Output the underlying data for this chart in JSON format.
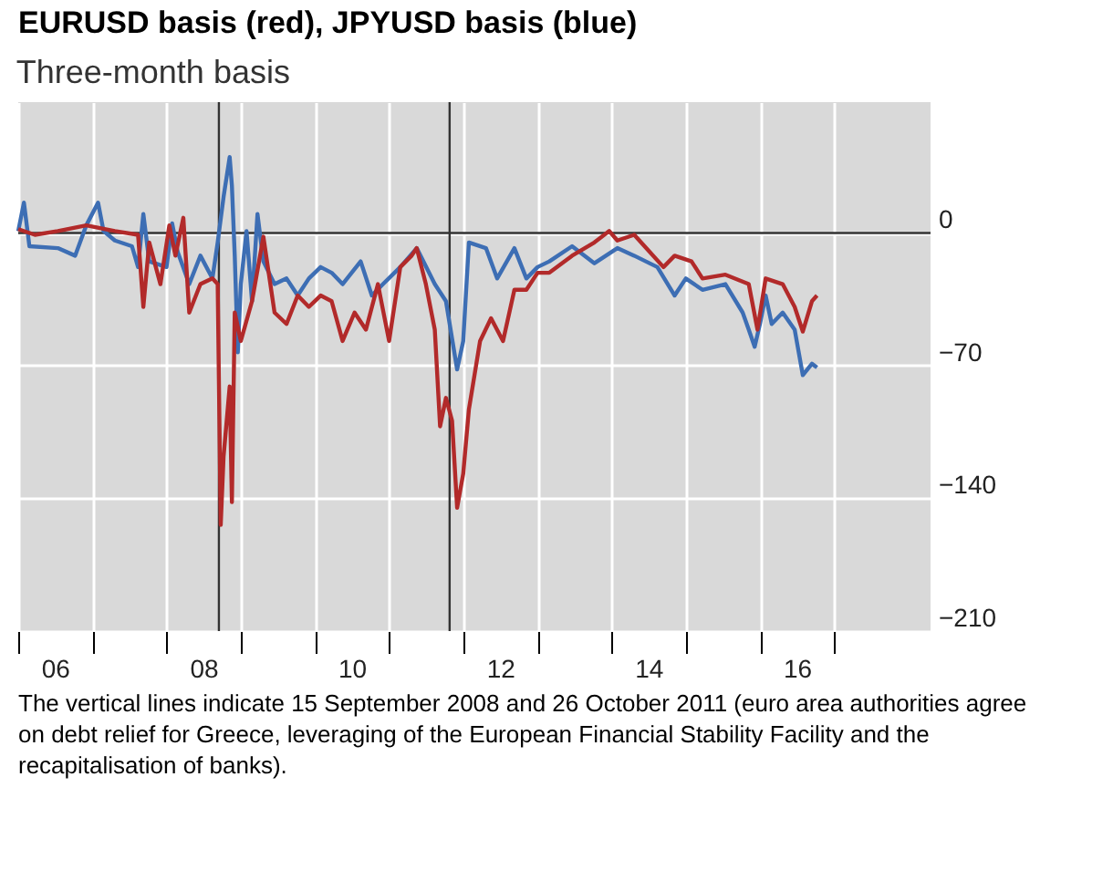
{
  "chart_data": {
    "type": "line",
    "title": "EURUSD basis (red), JPYUSD basis (blue)",
    "subtitle": "Three-month basis",
    "xlim": [
      "2006-01-01",
      "2018-04-20"
    ],
    "ylim": [
      -210,
      69
    ],
    "xticks": [
      {
        "value": "2006-01-01",
        "label": null
      },
      {
        "value": "2006-07-01",
        "label": "06"
      },
      {
        "value": "2007-01-01",
        "label": null
      },
      {
        "value": "2008-01-01",
        "label": null
      },
      {
        "value": "2008-07-01",
        "label": "08"
      },
      {
        "value": "2009-01-01",
        "label": null
      },
      {
        "value": "2010-01-01",
        "label": null
      },
      {
        "value": "2010-07-01",
        "label": "10"
      },
      {
        "value": "2011-01-01",
        "label": null
      },
      {
        "value": "2012-01-01",
        "label": null
      },
      {
        "value": "2012-07-01",
        "label": "12"
      },
      {
        "value": "2013-01-01",
        "label": null
      },
      {
        "value": "2014-01-01",
        "label": null
      },
      {
        "value": "2014-07-01",
        "label": "14"
      },
      {
        "value": "2015-01-01",
        "label": null
      },
      {
        "value": "2016-01-01",
        "label": null
      },
      {
        "value": "2016-07-01",
        "label": "16"
      },
      {
        "value": "2017-01-01",
        "label": null
      }
    ],
    "yticks": [
      0,
      -70,
      -140,
      -210
    ],
    "grid": true,
    "ref_lines": [
      {
        "axis": "y",
        "value": 0,
        "color": "#333333"
      },
      {
        "axis": "x",
        "value": "2008-09-15",
        "color": "#333333"
      },
      {
        "axis": "x",
        "value": "2011-10-26",
        "color": "#333333"
      }
    ],
    "series": [
      {
        "color": "#3d6eb4",
        "x": [
          "2006-01-01",
          "2006-01-29",
          "2006-02-25",
          "2006-07-15",
          "2006-10-08",
          "2006-12-02",
          "2007-01-29",
          "2007-02-25",
          "2007-04-22",
          "2007-07-15",
          "2007-08-14",
          "2007-09-09",
          "2007-10-08",
          "2008-01-01",
          "2008-01-29",
          "2008-02-25",
          "2008-04-22",
          "2008-06-16",
          "2008-08-14",
          "2008-09-09",
          "2008-10-08",
          "2008-11-07",
          "2008-11-18",
          "2008-12-02",
          "2008-12-17",
          "2009-01-01",
          "2009-01-29",
          "2009-02-25",
          "2009-03-24",
          "2009-04-22",
          "2009-06-16",
          "2009-08-14",
          "2009-10-08",
          "2009-12-02",
          "2010-01-29",
          "2010-03-24",
          "2010-05-17",
          "2010-08-14",
          "2010-10-08",
          "2010-12-02",
          "2011-02-25",
          "2011-05-17",
          "2011-08-14",
          "2011-10-08",
          "2011-12-02",
          "2012-01-01",
          "2012-01-29",
          "2012-04-22",
          "2012-06-16",
          "2012-09-09",
          "2012-11-07",
          "2013-01-01",
          "2013-02-28",
          "2013-06-20",
          "2013-10-08",
          "2014-01-29",
          "2014-04-22",
          "2014-08-14",
          "2014-11-07",
          "2015-01-01",
          "2015-03-24",
          "2015-07-15",
          "2015-10-08",
          "2015-11-07",
          "2015-12-06",
          "2016-01-01",
          "2016-01-29",
          "2016-02-28",
          "2016-04-22",
          "2016-06-20",
          "2016-07-30",
          "2016-09-13",
          "2016-10-08"
        ],
        "values": [
          1,
          16,
          -7,
          -8,
          -12,
          4,
          16,
          1,
          -4,
          -7,
          -18,
          10,
          -15,
          -18,
          5,
          -10,
          -27,
          -12,
          -24,
          -5,
          19,
          40,
          25,
          -12,
          -63,
          -27,
          1,
          -36,
          10,
          -15,
          -27,
          -24,
          -33,
          -24,
          -18,
          -21,
          -27,
          -15,
          -33,
          -27,
          -18,
          -8,
          -27,
          -36,
          -72,
          -57,
          -5,
          -8,
          -24,
          -8,
          -24,
          -18,
          -15,
          -7,
          -16,
          -8,
          -12,
          -18,
          -33,
          -24,
          -30,
          -27,
          -42,
          -51,
          -60,
          -48,
          -33,
          -48,
          -42,
          -51,
          -75,
          -69,
          -71
        ]
      },
      {
        "color": "#b22a2a",
        "x": [
          "2006-01-01",
          "2006-03-24",
          "2006-07-15",
          "2006-12-02",
          "2007-04-22",
          "2007-08-14",
          "2007-09-09",
          "2007-10-08",
          "2007-12-02",
          "2008-01-15",
          "2008-02-14",
          "2008-03-24",
          "2008-04-22",
          "2008-06-16",
          "2008-08-14",
          "2008-09-09",
          "2008-09-24",
          "2008-10-08",
          "2008-11-07",
          "2008-11-18",
          "2008-12-02",
          "2009-01-01",
          "2009-02-25",
          "2009-04-22",
          "2009-06-16",
          "2009-08-14",
          "2009-10-08",
          "2009-12-02",
          "2010-01-29",
          "2010-03-24",
          "2010-05-17",
          "2010-07-15",
          "2010-09-09",
          "2010-11-07",
          "2011-01-01",
          "2011-02-25",
          "2011-04-22",
          "2011-05-17",
          "2011-07-01",
          "2011-08-14",
          "2011-09-09",
          "2011-10-08",
          "2011-11-07",
          "2011-12-02",
          "2012-01-01",
          "2012-01-29",
          "2012-03-24",
          "2012-05-17",
          "2012-07-15",
          "2012-09-09",
          "2012-11-07",
          "2013-01-01",
          "2013-02-28",
          "2013-06-20",
          "2013-10-08",
          "2013-12-20",
          "2014-01-29",
          "2014-04-22",
          "2014-06-20",
          "2014-09-13",
          "2014-11-07",
          "2015-01-29",
          "2015-03-24",
          "2015-07-15",
          "2015-11-07",
          "2015-12-20",
          "2016-01-29",
          "2016-04-22",
          "2016-06-20",
          "2016-07-30",
          "2016-09-13",
          "2016-10-08"
        ],
        "values": [
          2,
          -1,
          1,
          4,
          1,
          -1,
          -39,
          -5,
          -27,
          4,
          -12,
          8,
          -42,
          -27,
          -24,
          -27,
          -154,
          -118,
          -81,
          -142,
          -42,
          -57,
          -36,
          -2,
          -42,
          -48,
          -33,
          -39,
          -33,
          -36,
          -57,
          -42,
          -51,
          -27,
          -57,
          -18,
          -12,
          -8,
          -27,
          -51,
          -102,
          -87,
          -99,
          -145,
          -127,
          -93,
          -57,
          -45,
          -57,
          -30,
          -30,
          -21,
          -21,
          -12,
          -5,
          1,
          -4,
          -1,
          -8,
          -18,
          -12,
          -15,
          -24,
          -22,
          -27,
          -51,
          -24,
          -27,
          -39,
          -52,
          -36,
          -33
        ]
      }
    ],
    "annotations": [
      "The vertical lines indicate 15 September 2008 and 26 October 2011 (euro area authorities agree on debt relief for Greece, leveraging of the European Financial Stability Facility and the recapitalisation of banks)."
    ]
  }
}
